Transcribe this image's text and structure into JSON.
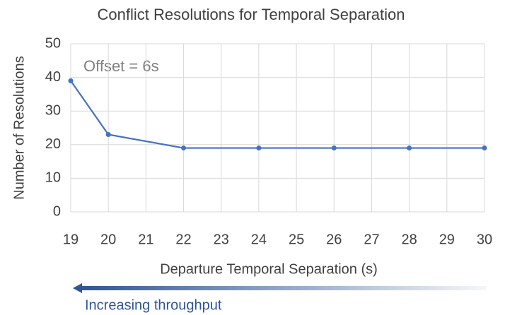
{
  "chart_data": {
    "type": "line",
    "title": "Conflict Resolutions for Temporal Separation",
    "x_label": "Departure Temporal Separation (s)",
    "y_label": "Number of Resolutions",
    "annotation": "Offset = 6s",
    "arrow_label": "Increasing throughput",
    "x": [
      19,
      20,
      22,
      24,
      26,
      28,
      30
    ],
    "series": [
      {
        "name": "Resolutions",
        "color": "#4472c4",
        "values": [
          39,
          23,
          19,
          19,
          19,
          19,
          19
        ]
      }
    ],
    "xlim": [
      19,
      30
    ],
    "xticks": [
      19,
      20,
      21,
      22,
      23,
      24,
      25,
      26,
      27,
      28,
      29,
      30
    ],
    "ylim": [
      0,
      50
    ],
    "yticks": [
      0,
      10,
      20,
      30,
      40,
      50
    ],
    "grid": true
  }
}
